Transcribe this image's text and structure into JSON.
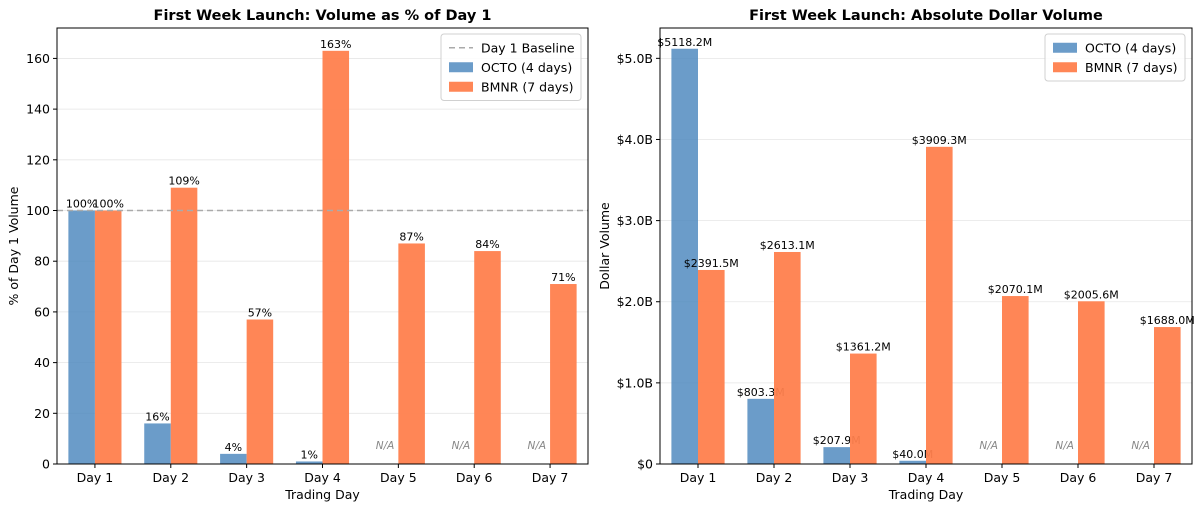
{
  "chart_data": [
    {
      "type": "bar",
      "title": "First Week Launch: Volume as % of Day 1",
      "xlabel": "Trading Day",
      "ylabel": "% of Day 1 Volume",
      "categories": [
        "Day 1",
        "Day 2",
        "Day 3",
        "Day 4",
        "Day 5",
        "Day 6",
        "Day 7"
      ],
      "ylim": [
        0,
        172
      ],
      "yticks": [
        0,
        20,
        40,
        60,
        80,
        100,
        120,
        140,
        160
      ],
      "ytick_labels": [
        "0",
        "20",
        "40",
        "60",
        "80",
        "100",
        "120",
        "140",
        "160"
      ],
      "grid": "horizontal",
      "legend_position": "top-right",
      "baseline": {
        "name": "Day 1 Baseline",
        "value": 100,
        "color": "#aaaaaa"
      },
      "series": [
        {
          "name": "OCTO (4 days)",
          "color": "#4a86bd",
          "values": [
            100,
            16,
            4,
            1,
            null,
            null,
            null
          ],
          "labels": [
            "100%",
            "16%",
            "4%",
            "1%",
            "N/A",
            "N/A",
            "N/A"
          ]
        },
        {
          "name": "BMNR (7 days)",
          "color": "#ff7f4d",
          "values": [
            100,
            109,
            57,
            163,
            87,
            84,
            71
          ],
          "labels": [
            "100%",
            "109%",
            "57%",
            "163%",
            "87%",
            "84%",
            "71%"
          ]
        }
      ]
    },
    {
      "type": "bar",
      "title": "First Week Launch: Absolute Dollar Volume",
      "xlabel": "Trading Day",
      "ylabel": "Dollar Volume",
      "categories": [
        "Day 1",
        "Day 2",
        "Day 3",
        "Day 4",
        "Day 5",
        "Day 6",
        "Day 7"
      ],
      "ylim": [
        0,
        5374
      ],
      "yticks": [
        0,
        1000,
        2000,
        3000,
        4000,
        5000
      ],
      "ytick_labels": [
        "$0",
        "$1.0B",
        "$2.0B",
        "$3.0B",
        "$4.0B",
        "$5.0B"
      ],
      "grid": "horizontal",
      "legend_position": "top-right",
      "series": [
        {
          "name": "OCTO (4 days)",
          "color": "#4a86bd",
          "values": [
            5118.2,
            803.3,
            207.9,
            40.0,
            null,
            null,
            null
          ],
          "labels": [
            "$5118.2M",
            "$803.3M",
            "$207.9M",
            "$40.0M",
            "N/A",
            "N/A",
            "N/A"
          ]
        },
        {
          "name": "BMNR (7 days)",
          "color": "#ff7f4d",
          "values": [
            2391.5,
            2613.1,
            1361.2,
            3909.3,
            2070.1,
            2005.6,
            1688.0
          ],
          "labels": [
            "$2391.5M",
            "$2613.1M",
            "$1361.2M",
            "$3909.3M",
            "$2070.1M",
            "$2005.6M",
            "$1688.0M"
          ]
        }
      ]
    }
  ]
}
